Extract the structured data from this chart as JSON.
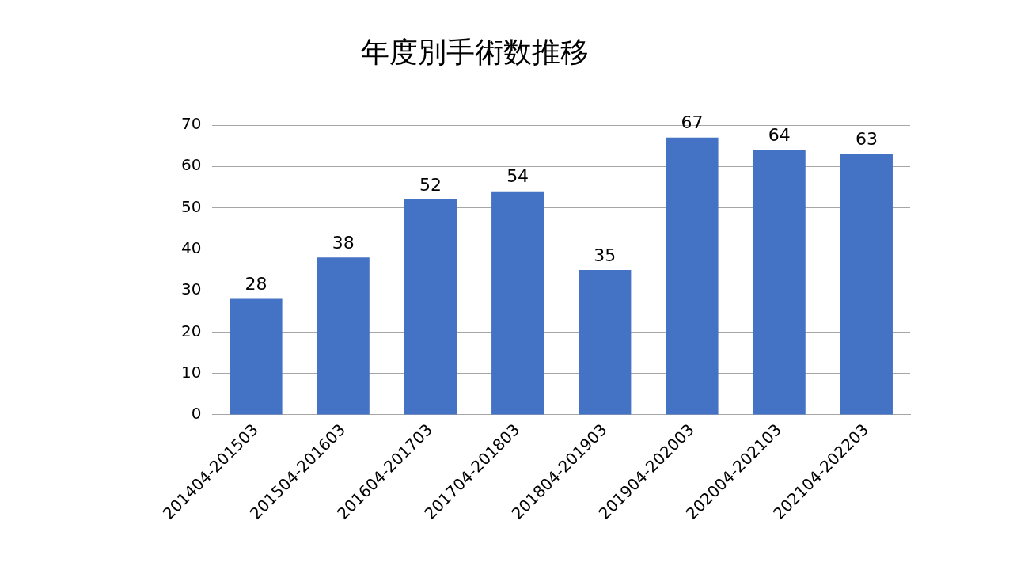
{
  "chart_data": {
    "type": "bar",
    "title": "年度別手術数推移",
    "categories": [
      "201404-201503",
      "201504-201603",
      "201604-201703",
      "201704-201803",
      "201804-201903",
      "201904-202003",
      "202004-202103",
      "202104-202203"
    ],
    "values": [
      28,
      38,
      52,
      54,
      35,
      67,
      64,
      63
    ],
    "color": "#4472c4",
    "ylim": [
      0,
      70
    ],
    "yticks": [
      0,
      10,
      20,
      30,
      40,
      50,
      60,
      70
    ],
    "grid": "y",
    "data_labels": true
  }
}
